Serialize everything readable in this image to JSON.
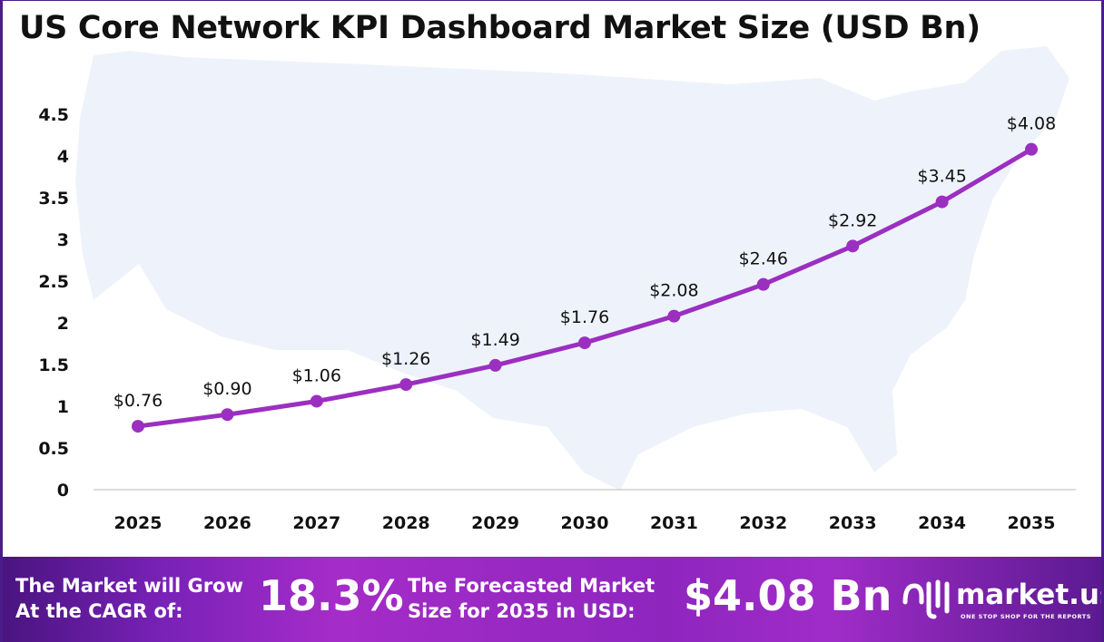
{
  "chart_data": {
    "type": "line",
    "title": "US Core Network KPI Dashboard Market Size (USD Bn)",
    "xlabel": "",
    "ylabel": "",
    "categories": [
      "2025",
      "2026",
      "2027",
      "2028",
      "2029",
      "2030",
      "2031",
      "2032",
      "2033",
      "2034",
      "2035"
    ],
    "values": [
      0.76,
      0.9,
      1.06,
      1.26,
      1.49,
      1.76,
      2.08,
      2.46,
      2.92,
      3.45,
      4.08
    ],
    "data_labels": [
      "$0.76",
      "$0.90",
      "$1.06",
      "$1.26",
      "$1.49",
      "$1.76",
      "$2.08",
      "$2.46",
      "$2.92",
      "$3.45",
      "$4.08"
    ],
    "ylim": [
      0,
      4.5
    ],
    "yticks": [
      "0",
      "0.5",
      "1",
      "1.5",
      "2",
      "2.5",
      "3",
      "3.5",
      "4",
      "4.5"
    ],
    "grid": false,
    "line_color": "#9b2fc0",
    "background": "US map silhouette"
  },
  "banner": {
    "grow_line1": "The Market will Grow",
    "grow_line2": "At the CAGR of:",
    "cagr": "18.3%",
    "forecast_line1": "The Forecasted Market",
    "forecast_line2": "Size for 2035 in USD:",
    "forecast_value": "$4.08 Bn",
    "logo_text": "market.us",
    "logo_tagline": "ONE STOP SHOP FOR THE REPORTS"
  }
}
